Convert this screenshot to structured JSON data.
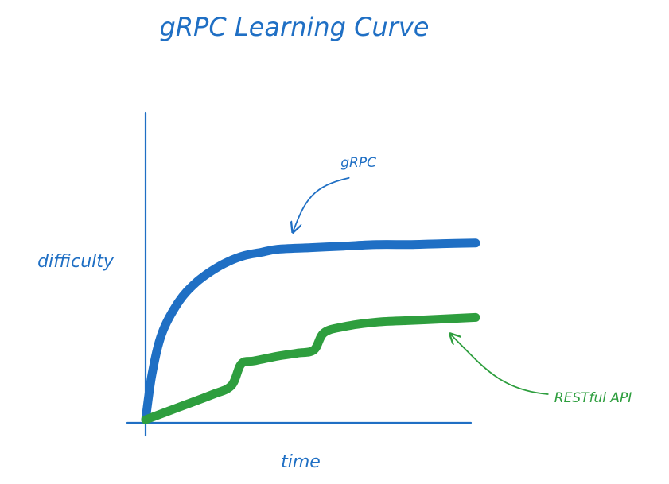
{
  "chart_data": {
    "type": "line",
    "title": "gRPC Learning Curve",
    "xlabel": "time",
    "ylabel": "difficulty",
    "grid": false,
    "legend": "none",
    "axis_ticks": false,
    "xlim": [
      0,
      10
    ],
    "ylim": [
      0,
      10
    ],
    "series": [
      {
        "name": "gRPC",
        "color": "#1f6fc4",
        "x": [
          0,
          0.2,
          0.5,
          1,
          1.5,
          2,
          2.5,
          3,
          3.5,
          4,
          5,
          6,
          7,
          8,
          9,
          10
        ],
        "y": [
          0.1,
          1.6,
          2.9,
          3.9,
          4.5,
          4.9,
          5.2,
          5.4,
          5.5,
          5.6,
          5.65,
          5.7,
          5.75,
          5.75,
          5.78,
          5.8
        ]
      },
      {
        "name": "RESTful API",
        "color": "#2e9e3e",
        "x": [
          0,
          1,
          2,
          2.6,
          2.9,
          3.3,
          4,
          4.6,
          5.1,
          5.4,
          6,
          7,
          8,
          9,
          10
        ],
        "y": [
          0.1,
          0.5,
          0.9,
          1.2,
          1.9,
          2.0,
          2.15,
          2.25,
          2.35,
          2.9,
          3.1,
          3.25,
          3.3,
          3.35,
          3.4
        ]
      }
    ],
    "annotations": [
      {
        "text": "gRPC",
        "target_series": "gRPC",
        "target_x": 4.4,
        "color": "#1f6fc4"
      },
      {
        "text": "RESTful API",
        "target_series": "RESTful API",
        "target_x": 9.2,
        "color": "#2e9e3e"
      }
    ],
    "colors": {
      "axis": "#1f6fc4",
      "title": "#1f6fc4",
      "labels": "#1f6fc4"
    }
  }
}
